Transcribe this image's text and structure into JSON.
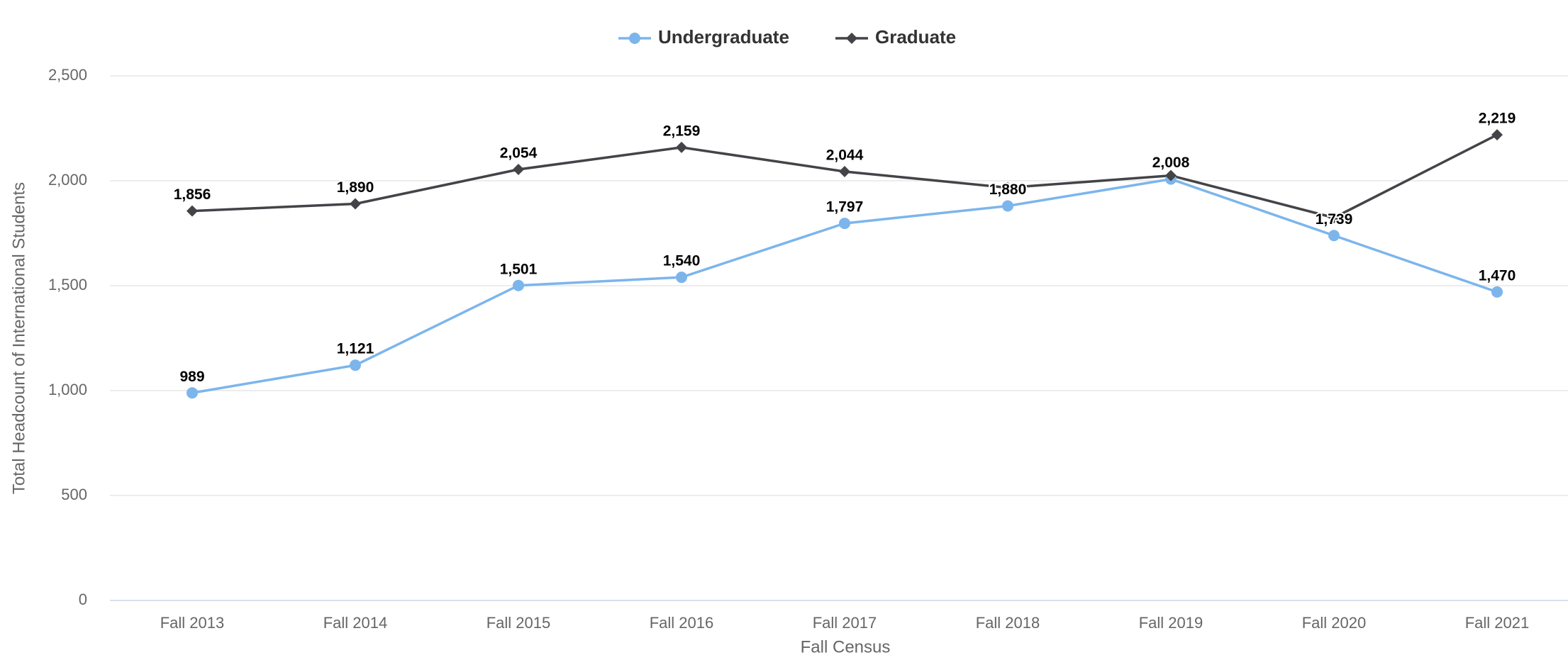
{
  "chart_data": {
    "type": "line",
    "x_label": "Fall Census",
    "y_label": "Total Headcount of International Students",
    "categories": [
      "Fall 2013",
      "Fall 2014",
      "Fall 2015",
      "Fall 2016",
      "Fall 2017",
      "Fall 2018",
      "Fall 2019",
      "Fall 2020",
      "Fall 2021"
    ],
    "series": [
      {
        "name": "Undergraduate",
        "color": "#7cb5ec",
        "marker": "circle",
        "values": [
          989,
          1121,
          1501,
          1540,
          1797,
          1880,
          2008,
          1739,
          1470
        ],
        "value_labels": [
          "989",
          "1,121",
          "1,501",
          "1,540",
          "1,797",
          "1,880",
          "2,008",
          "1,739",
          "1,470"
        ]
      },
      {
        "name": "Graduate",
        "color": "#434348",
        "marker": "diamond",
        "values": [
          1856,
          1890,
          2054,
          2159,
          2044,
          1967,
          2025,
          1824,
          2219
        ],
        "value_labels": [
          "1,856",
          "1,890",
          "2,054",
          "2,159",
          "2,044",
          null,
          null,
          null,
          "2,219"
        ]
      }
    ],
    "ylim": [
      0,
      2500
    ],
    "yticks": [
      0,
      500,
      {
        "value": 1000,
        "label": "1,000"
      },
      {
        "value": 1500,
        "label": "1,500"
      },
      {
        "value": 2000,
        "label": "2,000"
      },
      {
        "value": 2500,
        "label": "2,500"
      }
    ],
    "grid": true,
    "legend": "top"
  }
}
